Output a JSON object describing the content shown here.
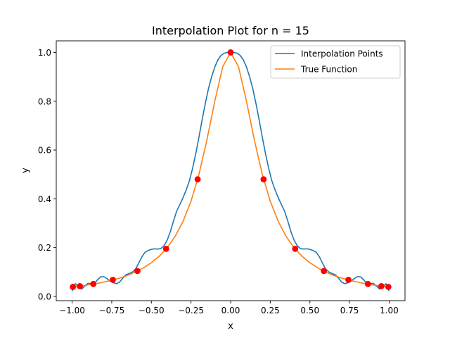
{
  "chart_data": {
    "type": "line",
    "title": "Interpolation Plot for n = 15",
    "xlabel": "x",
    "ylabel": "y",
    "xlim": [
      -1.1,
      1.1
    ],
    "ylim": [
      -0.0175,
      1.0475
    ],
    "xticks": [
      -1.0,
      -0.75,
      -0.5,
      -0.25,
      0.0,
      0.25,
      0.5,
      0.75,
      1.0
    ],
    "xtick_labels": [
      "−1.00",
      "−0.75",
      "−0.50",
      "−0.25",
      "0.00",
      "0.25",
      "0.50",
      "0.75",
      "1.00"
    ],
    "yticks": [
      0.0,
      0.2,
      0.4,
      0.6,
      0.8,
      1.0
    ],
    "ytick_labels": [
      "0.0",
      "0.2",
      "0.4",
      "0.6",
      "0.8",
      "1.0"
    ],
    "grid": false,
    "legend_position": "upper right",
    "series": [
      {
        "name": "Interpolation Points",
        "color": "#1f77b4",
        "x": [
          -1.0,
          -0.98,
          -0.96,
          -0.94,
          -0.92,
          -0.9,
          -0.88,
          -0.86,
          -0.84,
          -0.82,
          -0.8,
          -0.78,
          -0.76,
          -0.74,
          -0.72,
          -0.7,
          -0.68,
          -0.66,
          -0.64,
          -0.62,
          -0.6,
          -0.58,
          -0.56,
          -0.54,
          -0.52,
          -0.5,
          -0.48,
          -0.46,
          -0.44,
          -0.42,
          -0.4,
          -0.38,
          -0.36,
          -0.34,
          -0.32,
          -0.3,
          -0.28,
          -0.26,
          -0.24,
          -0.22,
          -0.2,
          -0.18,
          -0.16,
          -0.14,
          -0.12,
          -0.1,
          -0.08,
          -0.06,
          -0.04,
          -0.02,
          0.0,
          0.02,
          0.04,
          0.06,
          0.08,
          0.1,
          0.12,
          0.14,
          0.16,
          0.18,
          0.2,
          0.22,
          0.24,
          0.26,
          0.28,
          0.3,
          0.32,
          0.34,
          0.36,
          0.38,
          0.4,
          0.42,
          0.44,
          0.46,
          0.48,
          0.5,
          0.52,
          0.54,
          0.56,
          0.58,
          0.6,
          0.62,
          0.64,
          0.66,
          0.68,
          0.7,
          0.72,
          0.74,
          0.76,
          0.78,
          0.8,
          0.82,
          0.84,
          0.86,
          0.88,
          0.9,
          0.92,
          0.94,
          0.96,
          0.98,
          1.0
        ],
        "y": [
          0.022,
          0.052,
          0.04,
          0.03,
          0.042,
          0.054,
          0.052,
          0.051,
          0.068,
          0.08,
          0.081,
          0.073,
          0.063,
          0.056,
          0.052,
          0.059,
          0.075,
          0.089,
          0.094,
          0.1,
          0.112,
          0.136,
          0.162,
          0.181,
          0.188,
          0.193,
          0.195,
          0.194,
          0.196,
          0.208,
          0.231,
          0.266,
          0.31,
          0.35,
          0.377,
          0.405,
          0.437,
          0.474,
          0.525,
          0.585,
          0.652,
          0.723,
          0.79,
          0.851,
          0.9,
          0.94,
          0.97,
          0.988,
          0.997,
          1.0,
          1.0,
          1.0,
          0.997,
          0.988,
          0.97,
          0.94,
          0.9,
          0.851,
          0.79,
          0.723,
          0.652,
          0.585,
          0.525,
          0.474,
          0.437,
          0.405,
          0.377,
          0.35,
          0.31,
          0.266,
          0.231,
          0.208,
          0.196,
          0.194,
          0.195,
          0.193,
          0.188,
          0.181,
          0.162,
          0.136,
          0.112,
          0.1,
          0.094,
          0.089,
          0.075,
          0.059,
          0.052,
          0.056,
          0.063,
          0.073,
          0.081,
          0.08,
          0.068,
          0.051,
          0.052,
          0.054,
          0.042,
          0.03,
          0.04,
          0.052,
          0.022
        ]
      },
      {
        "name": "True Function",
        "color": "#ff7f0e",
        "function_samples": true,
        "x": [
          -1.0,
          -0.95,
          -0.9,
          -0.85,
          -0.8,
          -0.75,
          -0.7,
          -0.65,
          -0.6,
          -0.55,
          -0.5,
          -0.45,
          -0.4,
          -0.35,
          -0.3,
          -0.25,
          -0.2,
          -0.15,
          -0.1,
          -0.05,
          0.0,
          0.05,
          0.1,
          0.15,
          0.2,
          0.25,
          0.3,
          0.35,
          0.4,
          0.45,
          0.5,
          0.55,
          0.6,
          0.65,
          0.7,
          0.75,
          0.8,
          0.85,
          0.9,
          0.95,
          1.0
        ],
        "y": [
          0.038,
          0.042,
          0.047,
          0.052,
          0.059,
          0.066,
          0.075,
          0.086,
          0.1,
          0.117,
          0.138,
          0.165,
          0.2,
          0.246,
          0.308,
          0.39,
          0.5,
          0.64,
          0.8,
          0.941,
          1.0,
          0.941,
          0.8,
          0.64,
          0.5,
          0.39,
          0.308,
          0.246,
          0.2,
          0.165,
          0.138,
          0.117,
          0.1,
          0.086,
          0.075,
          0.066,
          0.059,
          0.052,
          0.047,
          0.042,
          0.038
        ]
      }
    ],
    "markers": {
      "color": "#ff0000",
      "x": [
        -0.995,
        -0.951,
        -0.866,
        -0.743,
        -0.588,
        -0.407,
        -0.208,
        0.0,
        0.208,
        0.407,
        0.588,
        0.743,
        0.866,
        0.951,
        0.995
      ],
      "y": [
        0.039,
        0.042,
        0.051,
        0.068,
        0.104,
        0.195,
        0.48,
        1.0,
        0.48,
        0.195,
        0.104,
        0.068,
        0.051,
        0.042,
        0.039
      ]
    }
  }
}
